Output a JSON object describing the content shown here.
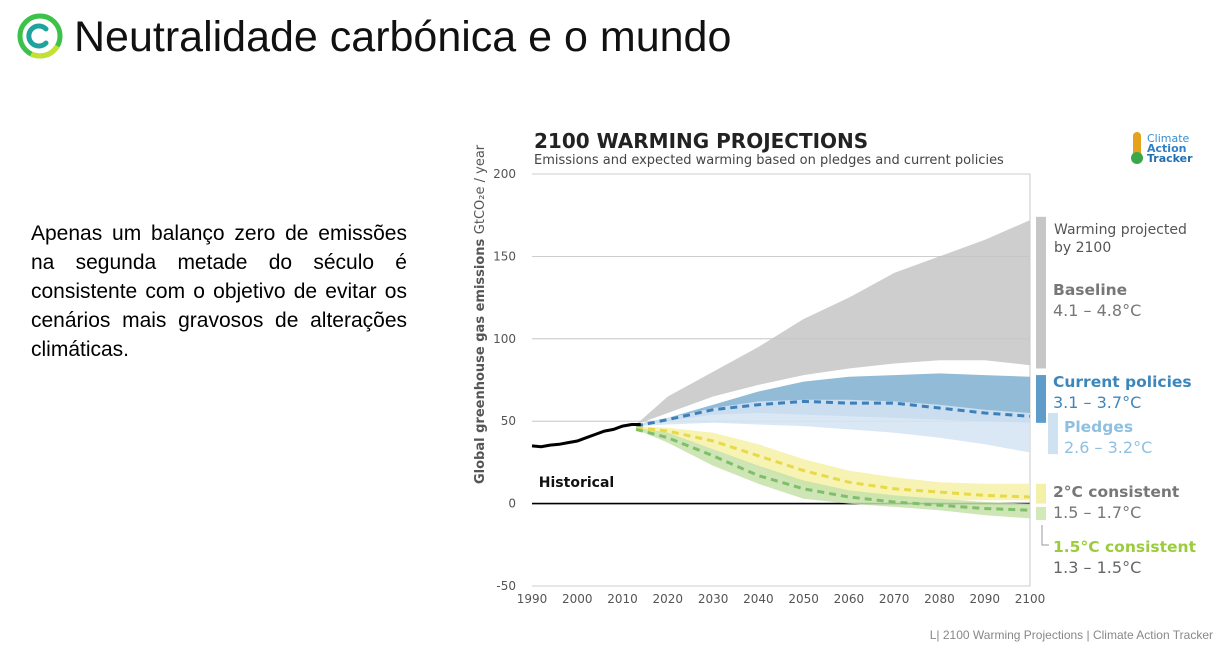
{
  "slide": {
    "title": "Neutralidade carbónica e o mundo",
    "body": "Apenas um balanço zero de emissões na segunda metade do século é consistente com o objetivo de evitar os cenários mais gravosos de alterações climáticas.",
    "footer": "L| 2100 Warming Projections | Climate Action Tracker",
    "logo_colors": {
      "green": "#3cc24a",
      "teal": "#20a39e",
      "lime": "#c4e030"
    }
  },
  "chart_data": {
    "type": "area",
    "title": "2100 WARMING PROJECTIONS",
    "subtitle": "Emissions and expected warming based on pledges and current policies",
    "ylabel": "Global greenhouse gas emissions",
    "ylabel_unit": "GtCO₂e / year",
    "xlabel": "",
    "xlim": [
      1990,
      2100
    ],
    "ylim": [
      -50,
      200
    ],
    "x_ticks": [
      1990,
      2000,
      2010,
      2020,
      2030,
      2040,
      2050,
      2060,
      2070,
      2080,
      2090,
      2100
    ],
    "y_ticks": [
      -50,
      0,
      50,
      100,
      150,
      200
    ],
    "gridlines": "horizontal",
    "tracker_logo": [
      "Climate",
      "Action",
      "Tracker"
    ],
    "historical": {
      "label": "Historical",
      "color": "#000000",
      "x": [
        1990,
        1992,
        1994,
        1996,
        1998,
        2000,
        2002,
        2004,
        2006,
        2008,
        2010,
        2012,
        2014
      ],
      "y": [
        35,
        34.5,
        35.5,
        36,
        37,
        38,
        40,
        42,
        44,
        45,
        47,
        48,
        48
      ]
    },
    "series": [
      {
        "name": "Baseline",
        "color": "#c6c6c6",
        "x": [
          2013,
          2020,
          2030,
          2040,
          2050,
          2060,
          2070,
          2080,
          2090,
          2100
        ],
        "upper": [
          48,
          65,
          80,
          95,
          112,
          125,
          140,
          150,
          160,
          172
        ],
        "lower": [
          48,
          55,
          65,
          72,
          78,
          82,
          85,
          87,
          87,
          84
        ]
      },
      {
        "name": "Current policies",
        "color": "#7fafd1",
        "x": [
          2013,
          2020,
          2030,
          2040,
          2050,
          2060,
          2070,
          2080,
          2090,
          2100
        ],
        "upper": [
          48,
          52,
          60,
          68,
          74,
          77,
          78,
          79,
          78,
          77
        ],
        "lower": [
          47,
          50,
          54,
          55,
          54,
          53,
          52,
          51,
          50,
          49
        ],
        "median": [
          47,
          51,
          57,
          60,
          62,
          61,
          61,
          58,
          55,
          53
        ]
      },
      {
        "name": "Pledges",
        "color": "#d3e4f3",
        "x": [
          2013,
          2020,
          2030,
          2040,
          2050,
          2060,
          2070,
          2080,
          2090,
          2100
        ],
        "upper": [
          48,
          52,
          58,
          62,
          63,
          63,
          62,
          60,
          57,
          55
        ],
        "lower": [
          47,
          48,
          49,
          48,
          47,
          45,
          43,
          40,
          36,
          31
        ]
      },
      {
        "name": "2°C consistent",
        "color": "#f4f1a7",
        "x": [
          2013,
          2020,
          2030,
          2040,
          2050,
          2060,
          2070,
          2080,
          2090,
          2100
        ],
        "upper": [
          47,
          46,
          43,
          36,
          27,
          20,
          16,
          13,
          12,
          12
        ],
        "lower": [
          46,
          42,
          33,
          22,
          11,
          5,
          3,
          2,
          2,
          2
        ],
        "median": [
          46,
          44,
          38,
          29,
          20,
          13,
          9,
          7,
          5,
          4
        ]
      },
      {
        "name": "1.5°C consistent",
        "color": "#c5e0a8",
        "x": [
          2013,
          2020,
          2030,
          2040,
          2050,
          2060,
          2070,
          2080,
          2090,
          2100
        ],
        "upper": [
          46,
          43,
          33,
          23,
          14,
          8,
          5,
          3,
          1,
          0
        ],
        "lower": [
          45,
          37,
          23,
          12,
          3,
          0,
          -2,
          -4,
          -7,
          -9
        ],
        "median": [
          45,
          40,
          29,
          17,
          9,
          4,
          1,
          -1,
          -3,
          -4
        ]
      }
    ],
    "legend": {
      "header": "Warming projected by 2100",
      "header_lines": [
        "Warming projected",
        "by 2100"
      ],
      "items": [
        {
          "name": "Baseline",
          "range": "4.1 – 4.8°C",
          "name_color": "#777777",
          "range_color": "#777777",
          "bar_color": "#c6c6c6"
        },
        {
          "name": "Current policies",
          "range": "3.1 – 3.7°C",
          "name_color": "#3d86bc",
          "range_color": "#3d86bc",
          "bar_color": "#5f9cc9"
        },
        {
          "name": "Pledges",
          "range": "2.6 – 3.2°C",
          "name_color": "#8fc0e1",
          "range_color": "#8fc0e1",
          "bar_color": "#cfe2f2"
        },
        {
          "name": "2°C consistent",
          "range": "1.5 – 1.7°C",
          "name_color": "#777777",
          "range_color": "#777777",
          "bar_color": "#f3f1a8"
        },
        {
          "name": "1.5°C consistent",
          "range": "1.3 – 1.5°C",
          "name_color": "#9acc3c",
          "range_color": "#666666",
          "bar_color": "#d4e9b8"
        }
      ]
    },
    "bar_ranges": [
      {
        "name": "Baseline",
        "from": 82,
        "to": 174
      },
      {
        "name": "Current policies",
        "from": 49,
        "to": 78
      },
      {
        "name": "Pledges",
        "from": 30,
        "to": 55
      },
      {
        "name": "2°C consistent",
        "from": 0,
        "to": 12
      },
      {
        "name": "1.5°C consistent",
        "from": -10,
        "to": -2
      }
    ]
  }
}
